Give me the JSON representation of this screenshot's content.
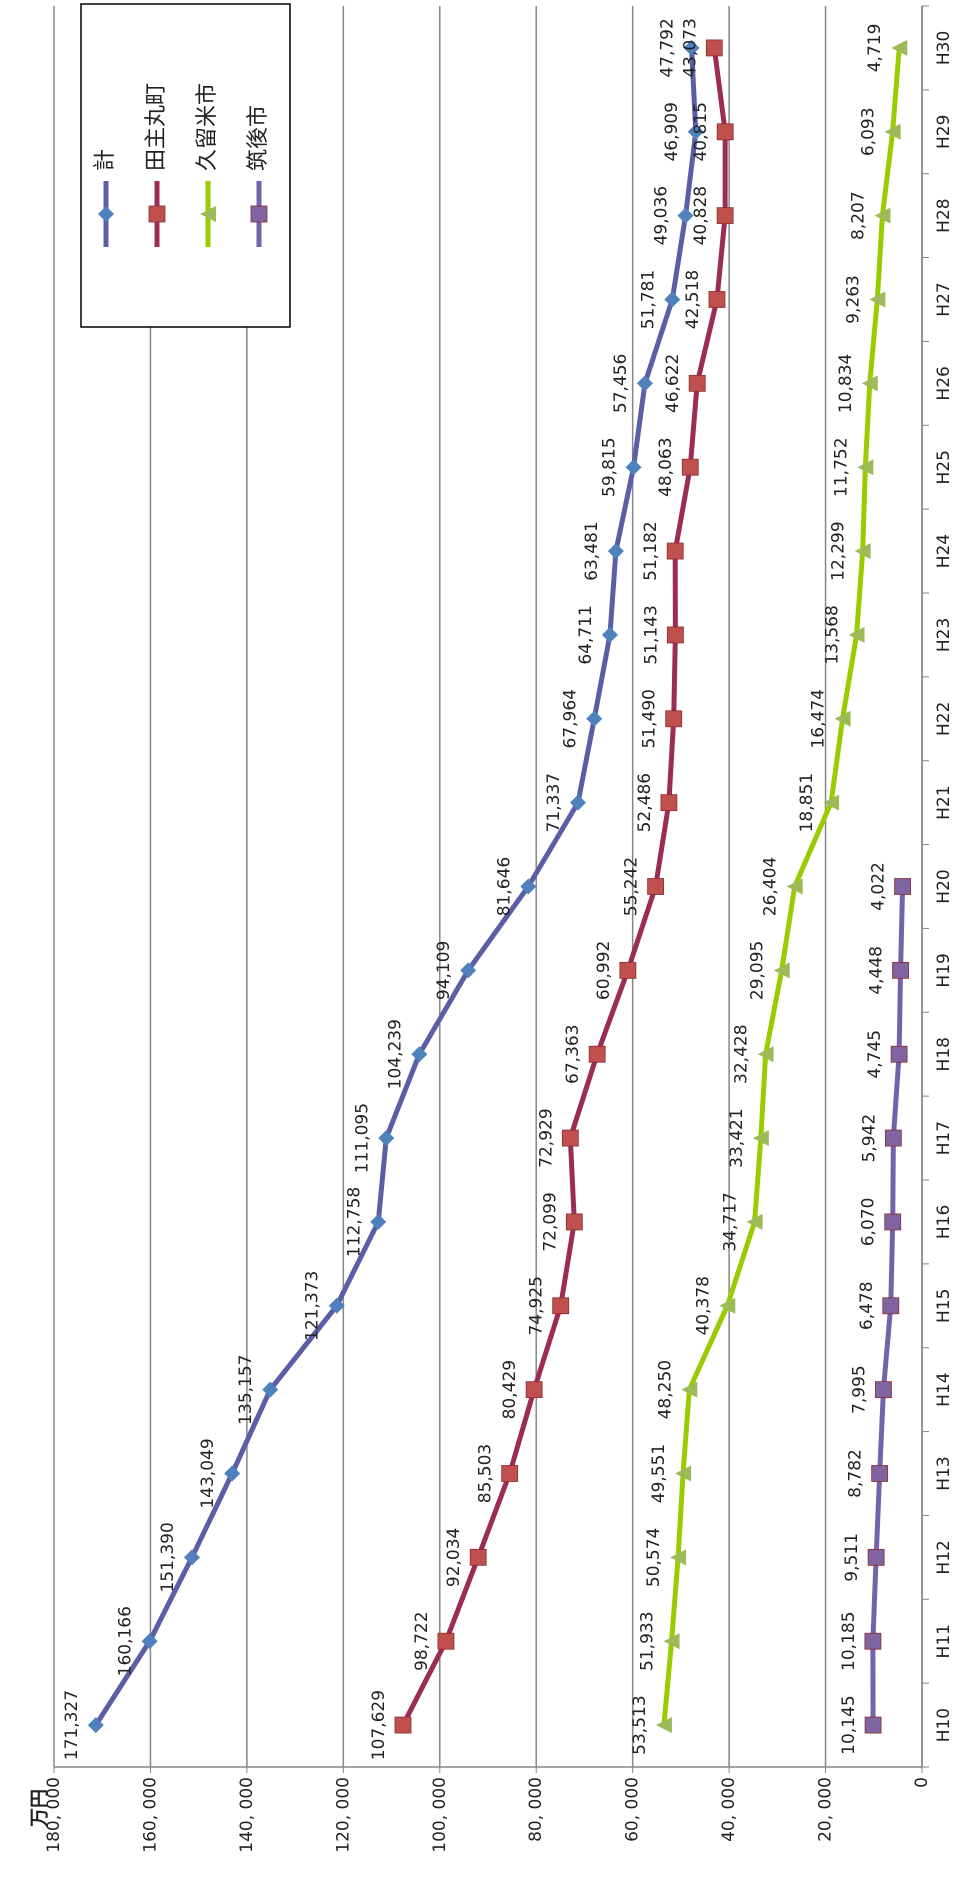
{
  "chart_data": {
    "type": "line",
    "y_label": "万円",
    "categories": [
      "H10",
      "H11",
      "H12",
      "H13",
      "H14",
      "H15",
      "H16",
      "H17",
      "H18",
      "H19",
      "H20",
      "H21",
      "H22",
      "H23",
      "H24",
      "H25",
      "H26",
      "H27",
      "H28",
      "H29",
      "H30"
    ],
    "ylim": [
      0,
      180000
    ],
    "yticks": [
      0,
      {
        "value": 20000,
        "label": "20, 000"
      },
      {
        "value": 40000,
        "label": "40, 000"
      },
      {
        "value": 60000,
        "label": "60, 000"
      },
      {
        "value": 80000,
        "label": "80, 000"
      },
      {
        "value": 100000,
        "label": "100, 000"
      },
      {
        "value": 120000,
        "label": "120, 000"
      },
      {
        "value": 140000,
        "label": "140, 000"
      },
      {
        "value": 160000,
        "label": "160, 000"
      },
      {
        "value": 180000,
        "label": "180, 000"
      }
    ],
    "grid": true,
    "legend": "top-right",
    "series": [
      {
        "name": "計",
        "color": "#5a5fa5",
        "marker_color": "#4f81bd",
        "marker": "diamond",
        "values": [
          171327,
          160166,
          151390,
          143049,
          135157,
          121373,
          112758,
          111095,
          104239,
          94109,
          81646,
          71337,
          67964,
          64711,
          63481,
          59815,
          57456,
          51781,
          49036,
          46909,
          47792
        ],
        "value_labels": [
          "171,327",
          "160,166",
          "151,390",
          "143,049",
          "135,157",
          "121,373",
          "112,758",
          "111,095",
          "104,239",
          "94,109",
          "81,646",
          "71,337",
          "67,964",
          "64,711",
          "63,481",
          "59,815",
          "57,456",
          "51,781",
          "49,036",
          "46,909",
          "47,792"
        ]
      },
      {
        "name": "田主丸町",
        "color": "#9b2c58",
        "marker_color": "#c0504d",
        "marker": "square",
        "values": [
          107629,
          98722,
          92034,
          85503,
          80429,
          74925,
          72099,
          72929,
          67363,
          60992,
          55242,
          52486,
          51490,
          51143,
          51182,
          48063,
          46622,
          42518,
          40828,
          40815,
          43073
        ],
        "value_labels": [
          "107,629",
          "98,722",
          "92,034",
          "85,503",
          "80,429",
          "74,925",
          "72,099",
          "72,929",
          "67,363",
          "60,992",
          "55,242",
          "52,486",
          "51,490",
          "51,143",
          "51,182",
          "48,063",
          "46,622",
          "42,518",
          "40,828",
          "40,815",
          "43,073"
        ]
      },
      {
        "name": "久留米市",
        "color": "#99cc00",
        "marker_color": "#9bbb59",
        "marker": "triangle",
        "values": [
          53513,
          51933,
          50574,
          49551,
          48250,
          40378,
          34717,
          33421,
          32428,
          29095,
          26404,
          18851,
          16474,
          13568,
          12299,
          11752,
          10834,
          9263,
          8207,
          6093,
          4719
        ],
        "value_labels": [
          "53,513",
          "51,933",
          "50,574",
          "49,551",
          "48,250",
          "40,378",
          "34,717",
          "33,421",
          "32,428",
          "29,095",
          "26,404",
          "18,851",
          "16,474",
          "13,568",
          "12,299",
          "11,752",
          "10,834",
          "9,263",
          "8,207",
          "6,093",
          "4,719"
        ]
      },
      {
        "name": "筑後市",
        "color": "#7462ac",
        "marker_color": "#8064a2",
        "marker": "square",
        "values": [
          10145,
          10185,
          9511,
          8782,
          7995,
          6478,
          6070,
          5942,
          4745,
          4448,
          4022,
          null,
          null,
          null,
          null,
          null,
          null,
          null,
          null,
          null,
          null
        ],
        "value_labels": [
          "10,145",
          "10,185",
          "9,511",
          "8,782",
          "7,995",
          "6,478",
          "6,070",
          "5,942",
          "4,745",
          "4,448",
          "4,022",
          null,
          null,
          null,
          null,
          null,
          null,
          null,
          null,
          null,
          null
        ]
      }
    ]
  }
}
